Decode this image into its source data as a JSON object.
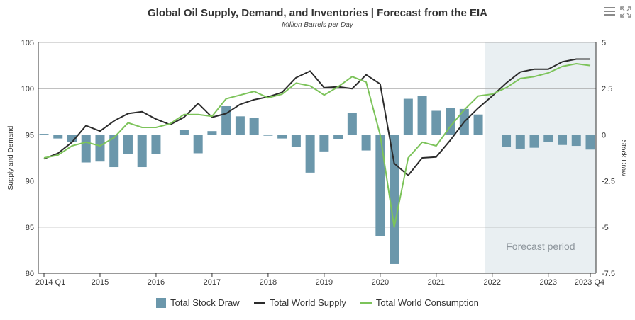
{
  "title": "Global Oil Supply, Demand, and Inventories | Forecast from the EIA",
  "subtitle": "Million Barrels per Day",
  "colors": {
    "bar": "#6b97ab",
    "supply": "#2b2b2b",
    "consumption": "#7cc35a",
    "forecast_band": "#e9eff2",
    "grid": "#9a9a9a"
  },
  "toolbar": {
    "menu_icon": "hamburger-menu-icon",
    "fullscreen_icon": "fullscreen-icon"
  },
  "chart_data": {
    "type": "bar+line",
    "title": "Global Oil Supply, Demand, and Inventories | Forecast from the EIA",
    "subtitle": "Million Barrels per Day",
    "ylabel_left": "Supply and Demand",
    "ylabel_right": "Stock Draw",
    "ylim_left": [
      80,
      105
    ],
    "ylim_right": [
      -7.5,
      5
    ],
    "yticks_left": [
      "80",
      "85",
      "90",
      "95",
      "100",
      "105"
    ],
    "yticks_right": [
      "-7.5",
      "-5",
      "-2.5",
      "0",
      "2.5",
      "5"
    ],
    "xticks": [
      {
        "label": "2014 Q1",
        "q": 0
      },
      {
        "label": "2015",
        "q": 4
      },
      {
        "label": "2016",
        "q": 8
      },
      {
        "label": "2017",
        "q": 12
      },
      {
        "label": "2018",
        "q": 16
      },
      {
        "label": "2019",
        "q": 20
      },
      {
        "label": "2020",
        "q": 24
      },
      {
        "label": "2021",
        "q": 28
      },
      {
        "label": "2022",
        "q": 32
      },
      {
        "label": "2023",
        "q": 36
      },
      {
        "label": "2023 Q4",
        "q": 39
      }
    ],
    "forecast_start_q": 32,
    "forecast_label": "Forecast period",
    "categories": [
      "2014 Q1",
      "2014 Q2",
      "2014 Q3",
      "2014 Q4",
      "2015 Q1",
      "2015 Q2",
      "2015 Q3",
      "2015 Q4",
      "2016 Q1",
      "2016 Q2",
      "2016 Q3",
      "2016 Q4",
      "2017 Q1",
      "2017 Q2",
      "2017 Q3",
      "2017 Q4",
      "2018 Q1",
      "2018 Q2",
      "2018 Q3",
      "2018 Q4",
      "2019 Q1",
      "2019 Q2",
      "2019 Q3",
      "2019 Q4",
      "2020 Q1",
      "2020 Q2",
      "2020 Q3",
      "2020 Q4",
      "2021 Q1",
      "2021 Q2",
      "2021 Q3",
      "2021 Q4",
      "2022 Q1",
      "2022 Q2",
      "2022 Q3",
      "2022 Q4",
      "2023 Q1",
      "2023 Q2",
      "2023 Q3",
      "2023 Q4"
    ],
    "series": [
      {
        "name": "Total Stock Draw",
        "type": "bar",
        "axis": "right",
        "values": [
          0.05,
          -0.2,
          -0.4,
          -1.5,
          -1.45,
          -1.75,
          -1.05,
          -1.75,
          -1.05,
          0,
          0.25,
          -1.0,
          0.2,
          1.55,
          1.0,
          0.9,
          -0.05,
          -0.2,
          -0.65,
          -2.05,
          -0.9,
          -0.25,
          1.2,
          -0.85,
          -5.5,
          -7.0,
          1.95,
          2.1,
          1.3,
          1.45,
          1.4,
          1.1,
          0,
          -0.65,
          -0.75,
          -0.7,
          -0.4,
          -0.55,
          -0.6,
          -0.8
        ]
      },
      {
        "name": "Total World Supply",
        "type": "line",
        "axis": "left",
        "values": [
          92.4,
          93.0,
          94.2,
          96.0,
          95.4,
          96.5,
          97.3,
          97.5,
          96.7,
          96.1,
          96.9,
          98.4,
          96.9,
          97.3,
          98.3,
          98.8,
          99.1,
          99.6,
          101.2,
          101.9,
          100.1,
          100.2,
          100.0,
          101.5,
          100.5,
          91.9,
          90.6,
          92.5,
          92.6,
          94.4,
          96.4,
          97.9,
          99.2,
          100.6,
          101.8,
          102.1,
          102.1,
          102.9,
          103.2,
          103.2
        ]
      },
      {
        "name": "Total World Consumption",
        "type": "line",
        "axis": "left",
        "values": [
          92.5,
          92.8,
          93.8,
          94.2,
          93.8,
          94.7,
          96.3,
          95.8,
          95.8,
          96.2,
          97.2,
          97.2,
          97.0,
          98.9,
          99.3,
          99.7,
          99.0,
          99.4,
          100.6,
          100.3,
          99.3,
          100.2,
          101.3,
          100.7,
          95.0,
          85.0,
          92.5,
          94.2,
          93.8,
          95.9,
          97.7,
          99.2,
          99.4,
          100.1,
          101.1,
          101.3,
          101.7,
          102.4,
          102.7,
          102.5
        ]
      }
    ],
    "legend": [
      "Total Stock Draw",
      "Total World Supply",
      "Total World Consumption"
    ],
    "legend_position": "bottom-center"
  }
}
